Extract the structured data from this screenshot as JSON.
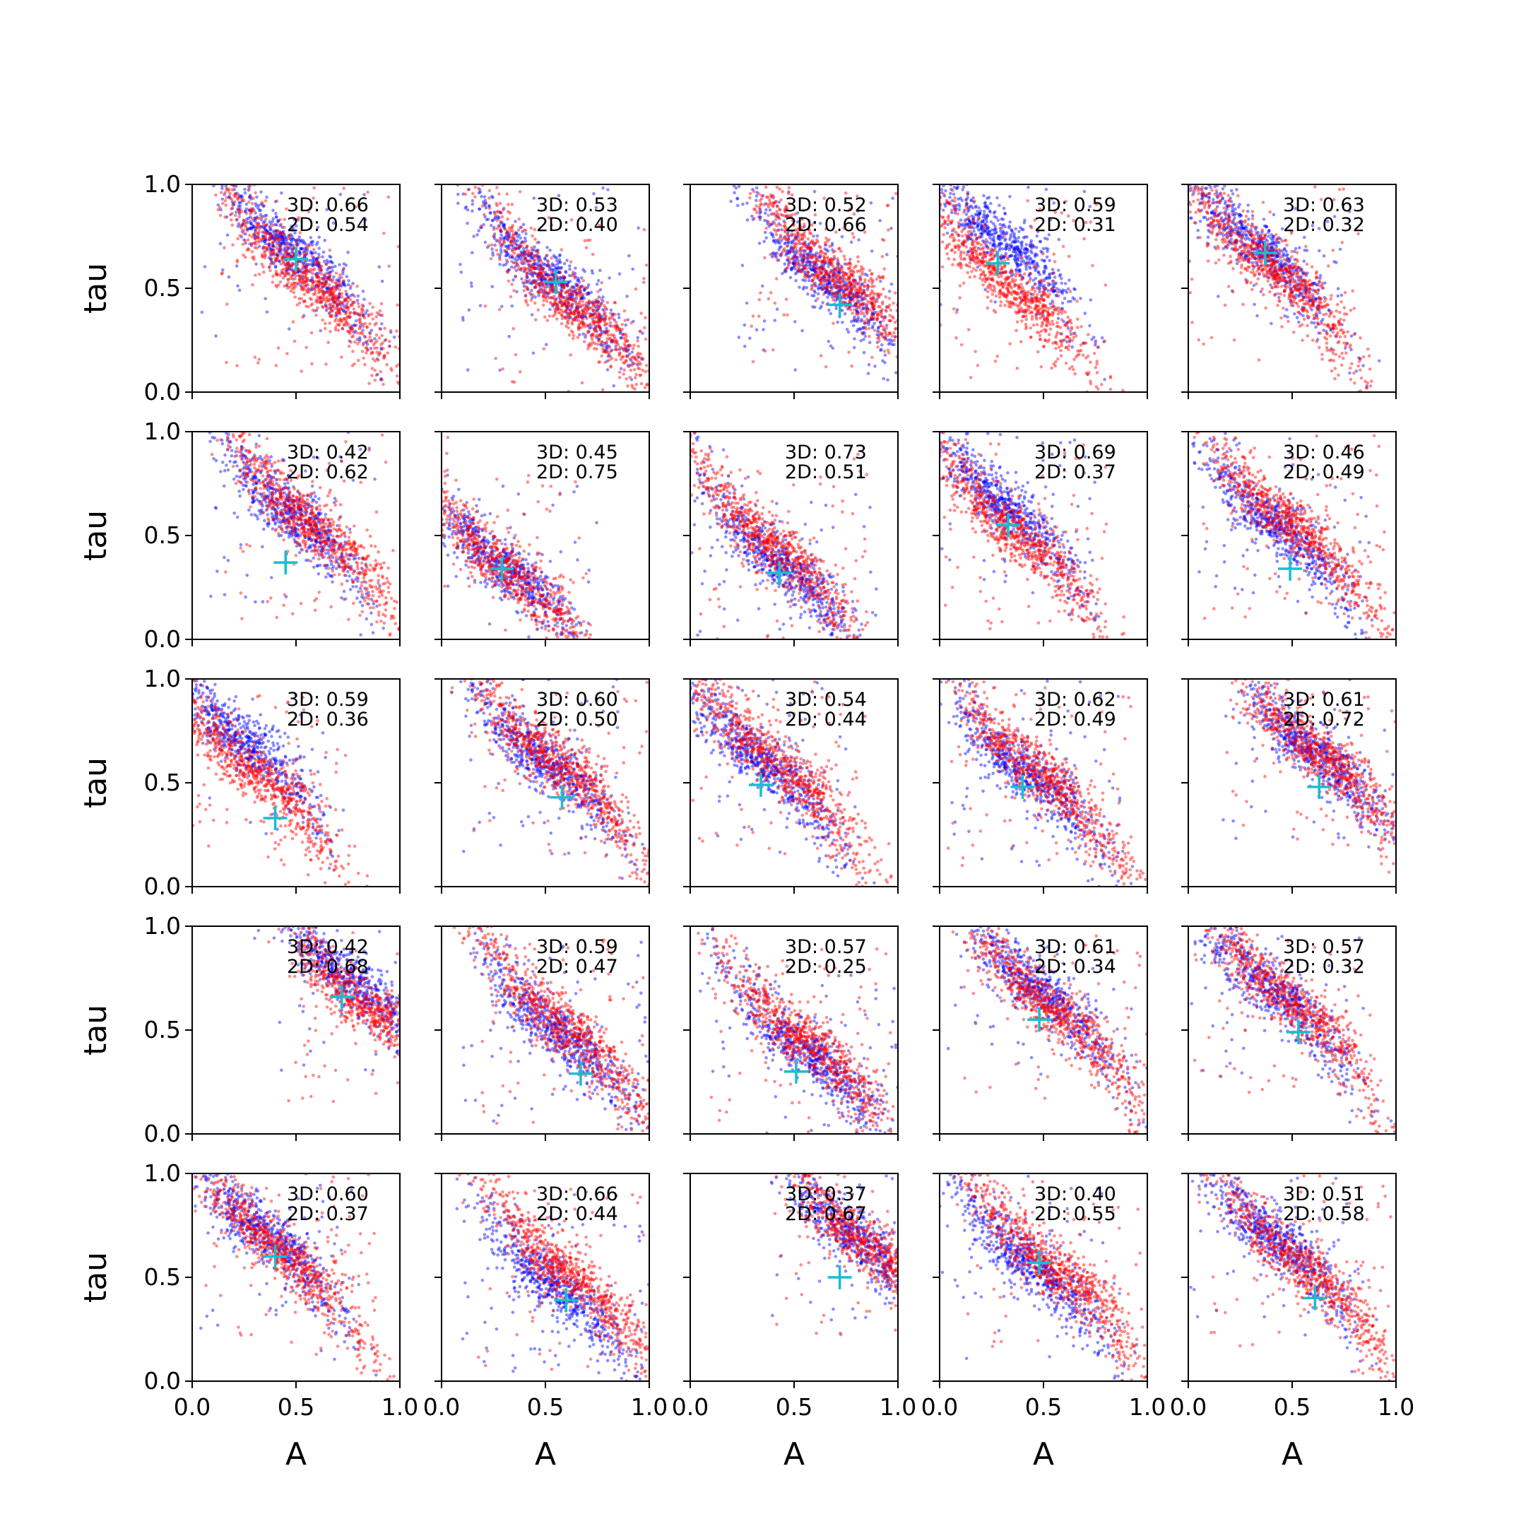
{
  "chart_data": {
    "type": "scatter",
    "layout": "5x5 grid of small multiples",
    "xlabel": "A",
    "ylabel": "tau",
    "xlim": [
      0,
      1
    ],
    "ylim": [
      0,
      1
    ],
    "xticks": [
      "0.0",
      "0.5",
      "1.0"
    ],
    "yticks": [
      "0.0",
      "0.5",
      "1.0"
    ],
    "grid": false,
    "legend": "none",
    "colors": {
      "series_a": "#ff0000",
      "series_b": "#0000ff",
      "marker": "#17becf"
    },
    "panels": [
      {
        "row": 0,
        "col": 0,
        "score_3d": "3D: 0.66",
        "score_2d": "2D: 0.54",
        "marker": [
          0.5,
          0.64
        ],
        "blue_center": [
          0.48,
          0.68
        ],
        "red_center": [
          0.55,
          0.55
        ]
      },
      {
        "row": 0,
        "col": 1,
        "score_3d": "3D: 0.53",
        "score_2d": "2D: 0.40",
        "marker": [
          0.55,
          0.53
        ],
        "blue_center": [
          0.52,
          0.55
        ],
        "red_center": [
          0.65,
          0.4
        ]
      },
      {
        "row": 0,
        "col": 2,
        "score_3d": "3D: 0.52",
        "score_2d": "2D: 0.66",
        "marker": [
          0.72,
          0.42
        ],
        "blue_center": [
          0.65,
          0.55
        ],
        "red_center": [
          0.72,
          0.55
        ]
      },
      {
        "row": 0,
        "col": 3,
        "score_3d": "3D: 0.59",
        "score_2d": "2D: 0.31",
        "marker": [
          0.28,
          0.62
        ],
        "blue_center": [
          0.28,
          0.75
        ],
        "red_center": [
          0.35,
          0.5
        ]
      },
      {
        "row": 0,
        "col": 4,
        "score_3d": "3D: 0.63",
        "score_2d": "2D: 0.32",
        "marker": [
          0.37,
          0.67
        ],
        "blue_center": [
          0.34,
          0.7
        ],
        "red_center": [
          0.4,
          0.6
        ]
      },
      {
        "row": 1,
        "col": 0,
        "score_3d": "3D: 0.42",
        "score_2d": "2D: 0.62",
        "marker": [
          0.45,
          0.37
        ],
        "blue_center": [
          0.48,
          0.6
        ],
        "red_center": [
          0.58,
          0.55
        ]
      },
      {
        "row": 1,
        "col": 1,
        "score_3d": "3D: 0.45",
        "score_2d": "2D: 0.75",
        "marker": [
          0.29,
          0.34
        ],
        "blue_center": [
          0.3,
          0.35
        ],
        "red_center": [
          0.3,
          0.35
        ]
      },
      {
        "row": 1,
        "col": 2,
        "score_3d": "3D: 0.73",
        "score_2d": "2D: 0.51",
        "marker": [
          0.43,
          0.32
        ],
        "blue_center": [
          0.45,
          0.35
        ],
        "red_center": [
          0.4,
          0.45
        ]
      },
      {
        "row": 1,
        "col": 3,
        "score_3d": "3D: 0.69",
        "score_2d": "2D: 0.37",
        "marker": [
          0.33,
          0.55
        ],
        "blue_center": [
          0.31,
          0.65
        ],
        "red_center": [
          0.38,
          0.5
        ]
      },
      {
        "row": 1,
        "col": 4,
        "score_3d": "3D: 0.46",
        "score_2d": "2D: 0.49",
        "marker": [
          0.49,
          0.34
        ],
        "blue_center": [
          0.42,
          0.55
        ],
        "red_center": [
          0.5,
          0.55
        ]
      },
      {
        "row": 2,
        "col": 0,
        "score_3d": "3D: 0.59",
        "score_2d": "2D: 0.36",
        "marker": [
          0.4,
          0.33
        ],
        "blue_center": [
          0.25,
          0.7
        ],
        "red_center": [
          0.3,
          0.55
        ]
      },
      {
        "row": 2,
        "col": 1,
        "score_3d": "3D: 0.60",
        "score_2d": "2D: 0.50",
        "marker": [
          0.58,
          0.43
        ],
        "blue_center": [
          0.5,
          0.6
        ],
        "red_center": [
          0.55,
          0.6
        ]
      },
      {
        "row": 2,
        "col": 2,
        "score_3d": "3D: 0.54",
        "score_2d": "2D: 0.44",
        "marker": [
          0.34,
          0.49
        ],
        "blue_center": [
          0.35,
          0.6
        ],
        "red_center": [
          0.42,
          0.6
        ]
      },
      {
        "row": 2,
        "col": 3,
        "score_3d": "3D: 0.62",
        "score_2d": "2D: 0.49",
        "marker": [
          0.4,
          0.48
        ],
        "blue_center": [
          0.42,
          0.55
        ],
        "red_center": [
          0.48,
          0.55
        ]
      },
      {
        "row": 2,
        "col": 4,
        "score_3d": "3D: 0.61",
        "score_2d": "2D: 0.72",
        "marker": [
          0.63,
          0.48
        ],
        "blue_center": [
          0.6,
          0.65
        ],
        "red_center": [
          0.62,
          0.65
        ]
      },
      {
        "row": 3,
        "col": 0,
        "score_3d": "3D: 0.42",
        "score_2d": "2D: 0.68",
        "marker": [
          0.72,
          0.66
        ],
        "blue_center": [
          0.75,
          0.75
        ],
        "red_center": [
          0.85,
          0.6
        ]
      },
      {
        "row": 3,
        "col": 1,
        "score_3d": "3D: 0.59",
        "score_2d": "2D: 0.47",
        "marker": [
          0.67,
          0.29
        ],
        "blue_center": [
          0.55,
          0.5
        ],
        "red_center": [
          0.6,
          0.5
        ]
      },
      {
        "row": 3,
        "col": 2,
        "score_3d": "3D: 0.57",
        "score_2d": "2D: 0.25",
        "marker": [
          0.51,
          0.3
        ],
        "blue_center": [
          0.55,
          0.4
        ],
        "red_center": [
          0.55,
          0.45
        ]
      },
      {
        "row": 3,
        "col": 3,
        "score_3d": "3D: 0.61",
        "score_2d": "2D: 0.34",
        "marker": [
          0.48,
          0.55
        ],
        "blue_center": [
          0.48,
          0.7
        ],
        "red_center": [
          0.55,
          0.6
        ]
      },
      {
        "row": 3,
        "col": 4,
        "score_3d": "3D: 0.57",
        "score_2d": "2D: 0.32",
        "marker": [
          0.53,
          0.49
        ],
        "blue_center": [
          0.4,
          0.7
        ],
        "red_center": [
          0.48,
          0.65
        ]
      },
      {
        "row": 4,
        "col": 0,
        "score_3d": "3D: 0.60",
        "score_2d": "2D: 0.37",
        "marker": [
          0.4,
          0.6
        ],
        "blue_center": [
          0.36,
          0.7
        ],
        "red_center": [
          0.45,
          0.6
        ]
      },
      {
        "row": 4,
        "col": 1,
        "score_3d": "3D: 0.66",
        "score_2d": "2D: 0.44",
        "marker": [
          0.6,
          0.39
        ],
        "blue_center": [
          0.55,
          0.45
        ],
        "red_center": [
          0.62,
          0.5
        ]
      },
      {
        "row": 4,
        "col": 2,
        "score_3d": "3D: 0.37",
        "score_2d": "2D: 0.67",
        "marker": [
          0.72,
          0.5
        ],
        "blue_center": [
          0.78,
          0.7
        ],
        "red_center": [
          0.85,
          0.65
        ]
      },
      {
        "row": 4,
        "col": 3,
        "score_3d": "3D: 0.40",
        "score_2d": "2D: 0.55",
        "marker": [
          0.48,
          0.57
        ],
        "blue_center": [
          0.45,
          0.55
        ],
        "red_center": [
          0.55,
          0.55
        ]
      },
      {
        "row": 4,
        "col": 4,
        "score_3d": "3D: 0.51",
        "score_2d": "2D: 0.58",
        "marker": [
          0.61,
          0.4
        ],
        "blue_center": [
          0.4,
          0.7
        ],
        "red_center": [
          0.55,
          0.55
        ]
      }
    ]
  }
}
